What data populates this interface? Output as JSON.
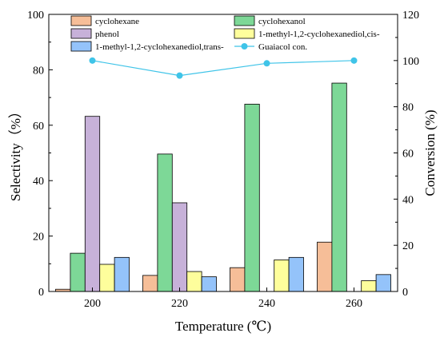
{
  "chart_data": {
    "type": "bar",
    "title": "",
    "xlabel": "Temperature (℃)",
    "ylabel": "Selectivity（%）",
    "y2label": "Conversion (%)",
    "categories": [
      "200",
      "220",
      "240",
      "260"
    ],
    "ylim": [
      0,
      100
    ],
    "yticks": [
      "0",
      "20",
      "40",
      "60",
      "80",
      "100"
    ],
    "y2lim": [
      0,
      120
    ],
    "y2ticks": [
      "0",
      "20",
      "40",
      "60",
      "80",
      "100",
      "120"
    ],
    "grid": false,
    "legend_position": "top",
    "series": [
      {
        "name": "cyclohexane",
        "type": "bar",
        "color": "#F6BE98",
        "values": [
          0.8,
          5.8,
          8.6,
          17.8
        ]
      },
      {
        "name": "cyclohexanol",
        "type": "bar",
        "color": "#7DD897",
        "values": [
          13.8,
          49.6,
          67.6,
          75.2
        ]
      },
      {
        "name": "phenol",
        "type": "bar",
        "color": "#C7B1D9",
        "values": [
          63.2,
          32.0,
          0,
          0
        ]
      },
      {
        "name": "1-methyl-1,2-cyclohexanediol,cis-",
        "type": "bar",
        "color": "#FEFE9C",
        "values": [
          9.8,
          7.2,
          11.4,
          3.9
        ]
      },
      {
        "name": "1-methyl-1,2-cyclohexanediol,trans-",
        "type": "bar",
        "color": "#94C3FA",
        "values": [
          12.3,
          5.3,
          12.3,
          6.1
        ]
      },
      {
        "name": "Guaiacol con.",
        "type": "line",
        "axis": "right",
        "color": "#3FC4E8",
        "values": [
          100.0,
          93.5,
          98.8,
          100.0
        ]
      }
    ]
  }
}
